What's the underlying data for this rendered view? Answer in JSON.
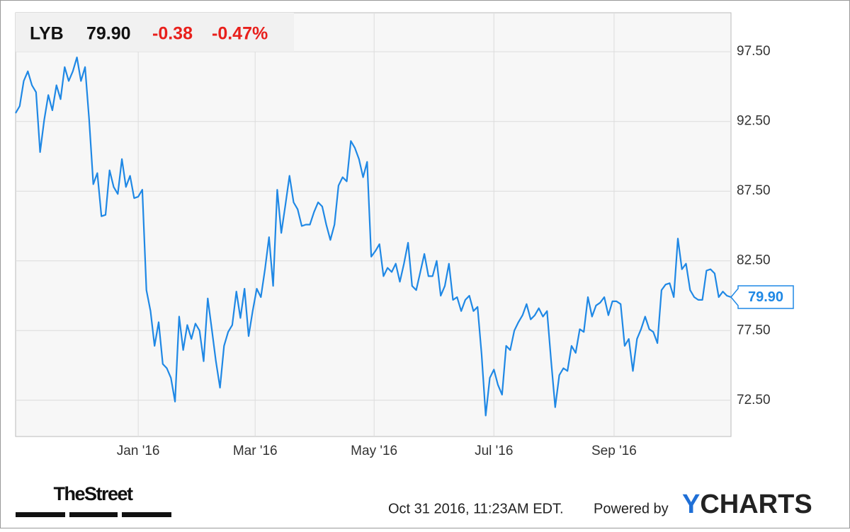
{
  "chart_data": {
    "type": "line",
    "header": {
      "ticker": "LYB",
      "price": "79.90",
      "change": "-0.38",
      "change_percent": "-0.47%"
    },
    "series": [
      {
        "name": "LYB",
        "color": "#1f88e5",
        "values": [
          93.1,
          93.6,
          95.4,
          96.1,
          95.1,
          94.6,
          90.3,
          92.6,
          94.4,
          93.3,
          95.1,
          94.1,
          96.4,
          95.4,
          96.1,
          97.1,
          95.4,
          96.4,
          92.6,
          88.0,
          88.8,
          85.7,
          85.8,
          89.0,
          87.8,
          87.3,
          89.8,
          87.8,
          88.6,
          87.0,
          87.1,
          87.6,
          80.4,
          78.9,
          76.4,
          78.1,
          75.1,
          74.8,
          74.1,
          72.4,
          78.5,
          76.1,
          77.9,
          76.9,
          78.0,
          77.5,
          75.3,
          79.8,
          77.6,
          75.3,
          73.4,
          76.4,
          77.4,
          77.9,
          80.3,
          78.4,
          80.5,
          77.1,
          78.9,
          80.5,
          79.9,
          81.9,
          84.2,
          80.7,
          87.6,
          84.5,
          86.5,
          88.6,
          86.7,
          86.2,
          85.0,
          85.1,
          85.1,
          86.0,
          86.7,
          86.4,
          85.1,
          84.0,
          85.1,
          87.9,
          88.5,
          88.2,
          91.1,
          90.6,
          89.8,
          88.5,
          89.6,
          82.8,
          83.2,
          83.7,
          81.4,
          82.0,
          81.7,
          82.3,
          81.0,
          82.3,
          83.8,
          80.7,
          80.4,
          81.7,
          83.0,
          81.4,
          81.4,
          82.5,
          80.0,
          80.7,
          82.3,
          79.7,
          79.9,
          78.9,
          79.7,
          80.0,
          78.9,
          79.2,
          75.8,
          71.4,
          74.1,
          74.7,
          73.6,
          72.9,
          76.4,
          76.1,
          77.5,
          78.1,
          78.6,
          79.4,
          78.3,
          78.6,
          79.1,
          78.5,
          78.9,
          75.3,
          72.0,
          74.3,
          74.8,
          74.6,
          76.4,
          75.9,
          77.6,
          77.4,
          79.9,
          78.5,
          79.3,
          79.5,
          79.9,
          78.6,
          79.6,
          79.6,
          79.4,
          76.4,
          76.9,
          74.6,
          76.9,
          77.6,
          78.5,
          77.6,
          77.4,
          76.6,
          80.4,
          80.8,
          80.9,
          79.9,
          84.1,
          81.9,
          82.3,
          80.4,
          79.9,
          79.7,
          79.7,
          81.8,
          81.9,
          81.6,
          79.9,
          80.3,
          80.0,
          79.9
        ]
      }
    ],
    "xlim": [
      0,
      175
    ],
    "xticks": [
      {
        "value": 30,
        "label": "Jan '16"
      },
      {
        "value": 58.6,
        "label": "Mar '16"
      },
      {
        "value": 87.7,
        "label": "May '16"
      },
      {
        "value": 117,
        "label": "Jul '16"
      },
      {
        "value": 146.4,
        "label": "Sep '16"
      }
    ],
    "ylim": [
      69.9,
      100.3
    ],
    "yticks": [
      {
        "value": 72.5,
        "label": "72.50"
      },
      {
        "value": 77.5,
        "label": "77.50"
      },
      {
        "value": 82.5,
        "label": "82.50"
      },
      {
        "value": 87.5,
        "label": "87.50"
      },
      {
        "value": 92.5,
        "label": "92.50"
      },
      {
        "value": 97.5,
        "label": "97.50"
      }
    ],
    "grid": true,
    "footer": {
      "source": "TheStreet",
      "timestamp": "Oct 31 2016, 11:23AM EDT.",
      "powered_by": "Powered by",
      "logo": "YCHARTS"
    }
  }
}
